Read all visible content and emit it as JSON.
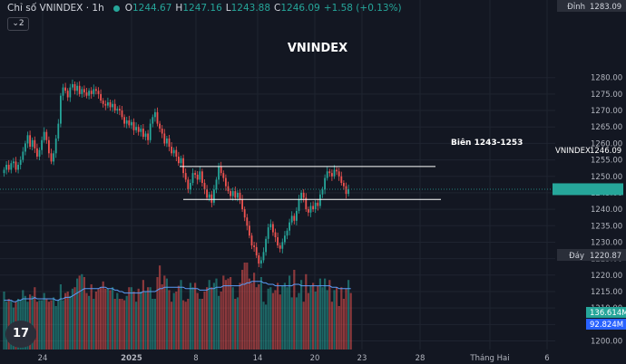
{
  "header": {
    "symbol": "Chỉ số VNINDEX · 1h",
    "o_label": "O",
    "o_value": "1244.67",
    "h_label": "H",
    "h_value": "1247.16",
    "l_label": "L",
    "l_value": "1243.88",
    "c_label": "C",
    "c_value": "1246.09",
    "change": "+1.58 (+0.13%)"
  },
  "layers_badge": "2",
  "logo_text": "17",
  "colors": {
    "background": "#131722",
    "up": "#26a69a",
    "down": "#ef5350",
    "grid": "#1f2430",
    "axis_text": "#b2b5be",
    "annotation": "#ffffff",
    "volume_ma": "#5b9cf6"
  },
  "chart_data": {
    "type": "candlestick",
    "title": "VNINDEX",
    "annotation_text": "Biên 1243-1253",
    "resistance": 1253,
    "support": 1243,
    "ylim": [
      1198,
      1285
    ],
    "y_ticks": [
      1200,
      1205,
      1210,
      1215,
      1220,
      1225,
      1230,
      1235,
      1240,
      1245,
      1250,
      1255,
      1260,
      1265,
      1270,
      1275,
      1280
    ],
    "x_tick_labels": [
      "24",
      "2025",
      "8",
      "14",
      "20",
      "23",
      "28",
      "Tháng Hai",
      "6"
    ],
    "price_labels": {
      "high_label": "Đỉnh",
      "high_value": "1283.09",
      "last_label": "VNINDEX",
      "last_value": "1246.09",
      "low_label": "Đáy",
      "low_value": "1220.87",
      "volume_value": "136.614M",
      "volume_ma_value": "92.824M"
    },
    "closes": [
      1252,
      1253.5,
      1252,
      1254,
      1254.5,
      1252,
      1253.5,
      1255,
      1257.5,
      1260,
      1262.5,
      1259,
      1261,
      1258.5,
      1256,
      1258,
      1261,
      1263.5,
      1261,
      1257,
      1254.5,
      1257,
      1261.5,
      1266,
      1274.5,
      1277,
      1276,
      1274,
      1277,
      1278,
      1276,
      1277.5,
      1275,
      1276.5,
      1275.5,
      1274.5,
      1276,
      1275,
      1276.5,
      1276,
      1275,
      1273,
      1272,
      1271.5,
      1272.5,
      1271,
      1272,
      1270,
      1270.5,
      1270,
      1268,
      1266,
      1267,
      1265.5,
      1266.5,
      1264,
      1265,
      1263.5,
      1264.5,
      1262,
      1263,
      1261,
      1266,
      1268,
      1269.5,
      1266,
      1264.5,
      1263,
      1260,
      1261.5,
      1259,
      1257,
      1258,
      1256,
      1254,
      1255.5,
      1251,
      1249,
      1246,
      1248,
      1251,
      1250.5,
      1249,
      1251.5,
      1248,
      1246,
      1243.5,
      1244.5,
      1242,
      1246,
      1249,
      1253,
      1251,
      1249.5,
      1247,
      1245.5,
      1244,
      1245.5,
      1243.5,
      1245,
      1243,
      1240,
      1237.5,
      1235,
      1232,
      1229,
      1228.5,
      1226,
      1223.5,
      1224.5,
      1227,
      1231,
      1234.5,
      1235.5,
      1233,
      1231.5,
      1229,
      1228,
      1230,
      1232,
      1233.5,
      1236,
      1238,
      1236.5,
      1239.5,
      1243,
      1245,
      1243.5,
      1240,
      1239,
      1241,
      1240,
      1242,
      1241,
      1244.5,
      1246,
      1249.5,
      1251.5,
      1251,
      1250,
      1252,
      1251.5,
      1250,
      1248,
      1247,
      1244.67,
      1246.09
    ],
    "volumes": [
      40,
      33,
      35,
      34,
      29,
      33,
      35,
      34,
      41,
      37,
      33,
      38,
      37,
      43,
      33,
      34,
      34,
      39,
      35,
      33,
      34,
      36,
      30,
      34,
      45,
      34,
      39,
      40,
      37,
      42,
      43,
      49,
      51,
      52,
      50,
      39,
      37,
      45,
      35,
      40,
      42,
      43,
      47,
      42,
      42,
      41,
      43,
      35,
      39,
      35,
      35,
      34,
      37,
      43,
      43,
      40,
      33,
      42,
      40,
      48,
      40,
      43,
      43,
      35,
      35,
      50,
      58,
      45,
      51,
      49,
      41,
      33,
      39,
      40,
      44,
      48,
      34,
      33,
      35,
      46,
      43,
      46,
      39,
      35,
      35,
      40,
      43,
      48,
      43,
      46,
      49,
      37,
      40,
      51,
      48,
      49,
      50,
      43,
      35,
      36,
      46,
      55,
      60,
      60,
      49,
      46,
      53,
      43,
      45,
      50,
      33,
      31,
      42,
      43,
      39,
      41,
      46,
      38,
      44,
      46,
      43,
      51,
      36,
      55,
      36,
      39,
      48,
      33,
      52,
      39,
      44,
      46,
      40,
      44,
      49,
      43,
      49,
      41,
      48,
      33,
      41,
      43,
      30,
      43,
      35,
      42,
      48,
      39
    ],
    "volume_ma": [
      34,
      34,
      34,
      34,
      33,
      33,
      34,
      34,
      35,
      35,
      35,
      35,
      35,
      36,
      35,
      35,
      35,
      35,
      35,
      35,
      35,
      35,
      34,
      34,
      35,
      35,
      36,
      36,
      36,
      37,
      38,
      39,
      40,
      41,
      42,
      42,
      42,
      42,
      42,
      42,
      42,
      43,
      43,
      43,
      42,
      42,
      42,
      41,
      41,
      40,
      40,
      39,
      39,
      39,
      39,
      39,
      39,
      39,
      39,
      40,
      40,
      40,
      40,
      40,
      40,
      41,
      42,
      42,
      43,
      43,
      43,
      43,
      43,
      43,
      43,
      43,
      43,
      42,
      42,
      42,
      42,
      42,
      42,
      41,
      41,
      41,
      41,
      42,
      42,
      42,
      43,
      43,
      43,
      44,
      44,
      44,
      44,
      44,
      44,
      44,
      44,
      45,
      45,
      46,
      46,
      47,
      47,
      47,
      47,
      47,
      46,
      46,
      45,
      45,
      45,
      44,
      44,
      44,
      44,
      44,
      44,
      44,
      44,
      45,
      45,
      45,
      44,
      44,
      44,
      44,
      44,
      44,
      44,
      44,
      44,
      44,
      44,
      44,
      44,
      43,
      43,
      43,
      42,
      42,
      42,
      42,
      42,
      42
    ]
  }
}
